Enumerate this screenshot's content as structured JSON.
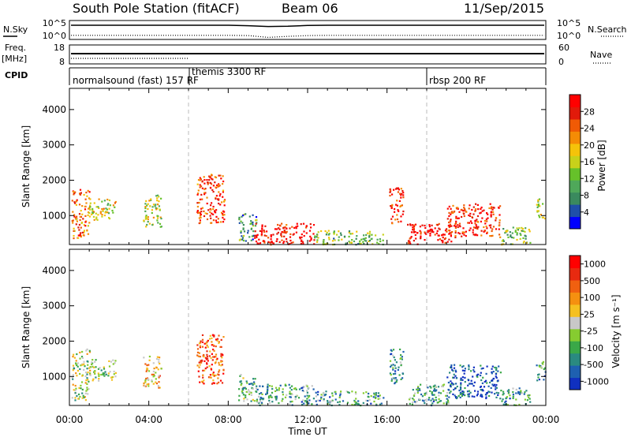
{
  "header": {
    "station": "South Pole Station (fitACF)",
    "beam": "Beam 06",
    "date": "11/Sep/2015"
  },
  "top_panels": {
    "nsky": {
      "left_label": "N.Sky",
      "right_label": "N.Search",
      "left_ticks": [
        "10^5",
        "10^0"
      ],
      "right_ticks": [
        "10^5",
        "10^0"
      ],
      "sky_level": [
        5,
        5,
        5,
        5,
        5,
        5,
        5,
        5,
        5,
        4.8,
        4.5,
        4.6,
        4.9,
        5,
        5,
        5,
        5,
        5,
        5,
        5,
        5,
        5,
        5,
        5,
        5
      ],
      "search_level": [
        1,
        1,
        1,
        1,
        1,
        1,
        1,
        1,
        1,
        0.9,
        0.2,
        0.6,
        0.9,
        1,
        1,
        1,
        1,
        1,
        1,
        1,
        1,
        1,
        1,
        1,
        1
      ]
    },
    "freq": {
      "left_label_1": "Freq.",
      "left_label_2": "[MHz]",
      "right_label": "Nave",
      "left_ticks": [
        "18",
        "8"
      ],
      "right_ticks": [
        "60",
        "0"
      ]
    },
    "cpid": {
      "label": "CPID",
      "segments": [
        {
          "label": "normalsound (fast) 157 RF",
          "start": 0,
          "end": 6
        },
        {
          "label": "themis 3300 RF",
          "start": 6,
          "end": 18
        },
        {
          "label": "rbsp 200 RF",
          "start": 18,
          "end": 24
        }
      ]
    }
  },
  "chart_data": [
    {
      "type": "heatmap",
      "title": "",
      "xlabel": "Time UT",
      "ylabel": "Slant Range [km]",
      "x_ticks": [
        "00:00",
        "04:00",
        "08:00",
        "12:00",
        "16:00",
        "20:00",
        "00:00"
      ],
      "y_ticks": [
        "1000",
        "2000",
        "3000",
        "4000"
      ],
      "xlim": [
        0,
        24
      ],
      "ylim": [
        180,
        4600
      ],
      "colorbar": {
        "label": "Power [dB]",
        "ticks": [
          "4",
          "8",
          "12",
          "16",
          "20",
          "24",
          "28"
        ],
        "colors": [
          "#0000ff",
          "#1f4fa8",
          "#3a8a5e",
          "#4fa85a",
          "#66c12a",
          "#c8d11a",
          "#f5c30a",
          "#f58c05",
          "#f05a05",
          "#e11a0a",
          "#ff0000"
        ]
      },
      "scatter_blobs": [
        {
          "t0": 0.1,
          "t1": 1.0,
          "r0": 350,
          "r1": 1800,
          "v": 0.75
        },
        {
          "t0": 1.0,
          "t1": 2.3,
          "r0": 900,
          "r1": 1500,
          "v": 0.55
        },
        {
          "t0": 3.7,
          "t1": 4.6,
          "r0": 700,
          "r1": 1600,
          "v": 0.5
        },
        {
          "t0": 6.4,
          "t1": 7.8,
          "r0": 800,
          "r1": 2200,
          "v": 0.85
        },
        {
          "t0": 8.5,
          "t1": 9.4,
          "r0": 300,
          "r1": 1100,
          "v": 0.3
        },
        {
          "t0": 9.3,
          "t1": 12.3,
          "r0": 200,
          "r1": 800,
          "v": 0.95
        },
        {
          "t0": 12.3,
          "t1": 15.8,
          "r0": 200,
          "r1": 600,
          "v": 0.4
        },
        {
          "t0": 16.1,
          "t1": 16.8,
          "r0": 800,
          "r1": 1800,
          "v": 0.9
        },
        {
          "t0": 17.0,
          "t1": 19.2,
          "r0": 200,
          "r1": 800,
          "v": 0.95
        },
        {
          "t0": 19.0,
          "t1": 21.7,
          "r0": 400,
          "r1": 1350,
          "v": 0.88
        },
        {
          "t0": 21.7,
          "t1": 23.2,
          "r0": 200,
          "r1": 700,
          "v": 0.4
        },
        {
          "t0": 23.5,
          "t1": 23.95,
          "r0": 900,
          "r1": 1500,
          "v": 0.5
        }
      ]
    },
    {
      "type": "heatmap",
      "title": "",
      "xlabel": "Time UT",
      "ylabel": "Slant Range [km]",
      "x_ticks": [
        "00:00",
        "04:00",
        "08:00",
        "12:00",
        "16:00",
        "20:00",
        "00:00"
      ],
      "y_ticks": [
        "1000",
        "2000",
        "3000",
        "4000"
      ],
      "xlim": [
        0,
        24
      ],
      "ylim": [
        180,
        4600
      ],
      "colorbar": {
        "label": "Velocity [m s⁻¹]",
        "ticks": [
          "1000",
          "500",
          "100",
          "25",
          "-25",
          "-100",
          "-500",
          "-1000"
        ],
        "colors": [
          "#1030c0",
          "#1e60b0",
          "#2a8a80",
          "#3aa848",
          "#86cc30",
          "#c8c8c8",
          "#f5c020",
          "#f59010",
          "#f06010",
          "#e82a10",
          "#ff0000"
        ]
      },
      "scatter_blobs": [
        {
          "t0": 0.1,
          "t1": 1.0,
          "r0": 350,
          "r1": 1800,
          "v": 0.45
        },
        {
          "t0": 1.0,
          "t1": 2.3,
          "r0": 900,
          "r1": 1500,
          "v": 0.4
        },
        {
          "t0": 3.7,
          "t1": 4.6,
          "r0": 700,
          "r1": 1600,
          "v": 0.6
        },
        {
          "t0": 6.4,
          "t1": 7.8,
          "r0": 800,
          "r1": 2200,
          "v": 0.8
        },
        {
          "t0": 8.5,
          "t1": 9.4,
          "r0": 300,
          "r1": 1100,
          "v": 0.35
        },
        {
          "t0": 9.3,
          "t1": 12.3,
          "r0": 200,
          "r1": 800,
          "v": 0.3
        },
        {
          "t0": 12.3,
          "t1": 15.8,
          "r0": 200,
          "r1": 600,
          "v": 0.3
        },
        {
          "t0": 16.1,
          "t1": 16.8,
          "r0": 800,
          "r1": 1800,
          "v": 0.3
        },
        {
          "t0": 17.0,
          "t1": 19.2,
          "r0": 200,
          "r1": 800,
          "v": 0.3
        },
        {
          "t0": 19.0,
          "t1": 21.7,
          "r0": 400,
          "r1": 1350,
          "v": 0.1
        },
        {
          "t0": 21.7,
          "t1": 23.2,
          "r0": 200,
          "r1": 700,
          "v": 0.3
        },
        {
          "t0": 23.5,
          "t1": 23.95,
          "r0": 900,
          "r1": 1500,
          "v": 0.25
        }
      ]
    }
  ]
}
